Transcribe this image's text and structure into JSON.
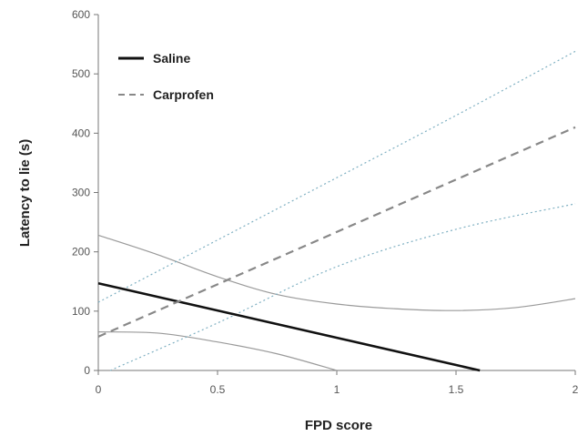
{
  "chart_data": {
    "type": "line",
    "title": "",
    "xlabel": "FPD score",
    "ylabel": "Latency to lie (s)",
    "xlim": [
      0,
      2
    ],
    "ylim": [
      0,
      600
    ],
    "xticks": [
      "0",
      "0.5",
      "1",
      "1.5",
      "2"
    ],
    "xtick_values": [
      0,
      0.5,
      1,
      1.5,
      2
    ],
    "yticks": [
      "0",
      "100",
      "200",
      "300",
      "400",
      "500",
      "600"
    ],
    "ytick_values": [
      0,
      100,
      200,
      300,
      400,
      500,
      600
    ],
    "grid": false,
    "legend_position": "top-left",
    "series": [
      {
        "name": "Saline",
        "style": "solid",
        "color": "#111111",
        "x": [
          0,
          1.6
        ],
        "y": [
          147,
          0
        ],
        "ci_lower": {
          "x": [
            0,
            0.25,
            0.5,
            0.75,
            1.0
          ],
          "y": [
            65,
            63,
            48,
            28,
            0
          ]
        },
        "ci_upper": {
          "x": [
            0,
            0.25,
            0.5,
            0.75,
            1.0,
            1.25,
            1.5,
            1.75,
            2.0
          ],
          "y": [
            228,
            195,
            158,
            128,
            112,
            104,
            101,
            106,
            121
          ]
        }
      },
      {
        "name": "Carprofen",
        "style": "dashed",
        "color": "#888888",
        "x": [
          0,
          2
        ],
        "y": [
          57,
          410
        ],
        "ci_color": "#7fb0c2",
        "ci_lower": {
          "x": [
            0.05,
            0.5,
            1.0,
            1.5,
            2.0
          ],
          "y": [
            0,
            80,
            175,
            238,
            281
          ]
        },
        "ci_upper": {
          "x": [
            0,
            0.5,
            1.0,
            1.5,
            2.0
          ],
          "y": [
            115,
            220,
            325,
            430,
            538
          ]
        }
      }
    ]
  }
}
